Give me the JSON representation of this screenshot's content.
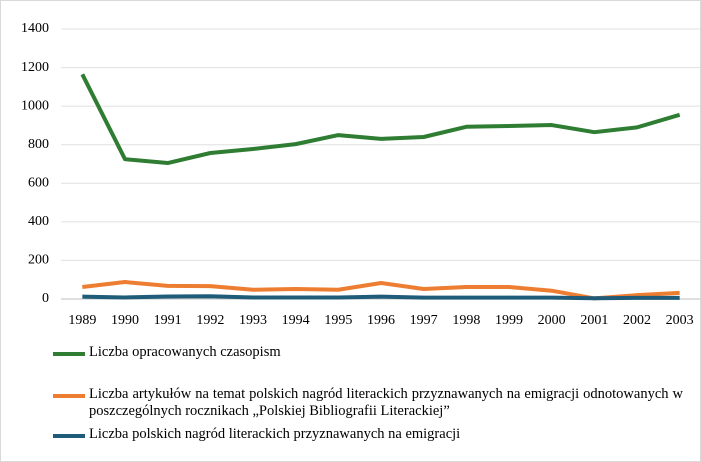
{
  "chart_data": {
    "type": "line",
    "categories": [
      "1989",
      "1990",
      "1991",
      "1992",
      "1993",
      "1994",
      "1995",
      "1996",
      "1997",
      "1998",
      "1999",
      "2000",
      "2001",
      "2002",
      "2003"
    ],
    "series": [
      {
        "name": "Liczba opracowanych czasopism",
        "color": "#2e7d32",
        "values": [
          1165,
          725,
          705,
          757,
          778,
          803,
          850,
          830,
          840,
          893,
          897,
          902,
          865,
          890,
          955
        ]
      },
      {
        "name": "Liczba artykułów na temat polskich nagród literackich przyznawanych na emigracji odnotowanych w poszczególnych rocznikach „Polskiej Bibliografii Literackiej”",
        "color": "#ed7d31",
        "values": [
          62,
          88,
          68,
          67,
          48,
          52,
          48,
          83,
          52,
          62,
          62,
          43,
          3,
          20,
          32
        ]
      },
      {
        "name": "Liczba polskich nagród literackich przyznawanych na emigracji",
        "color": "#1f5c7a",
        "values": [
          12,
          8,
          13,
          14,
          8,
          8,
          8,
          12,
          7,
          7,
          7,
          7,
          4,
          6,
          6
        ]
      }
    ],
    "ylim": [
      0,
      1400
    ],
    "yticks": [
      0,
      200,
      400,
      600,
      800,
      1000,
      1200,
      1400
    ],
    "grid": true,
    "legend": "bottom"
  }
}
